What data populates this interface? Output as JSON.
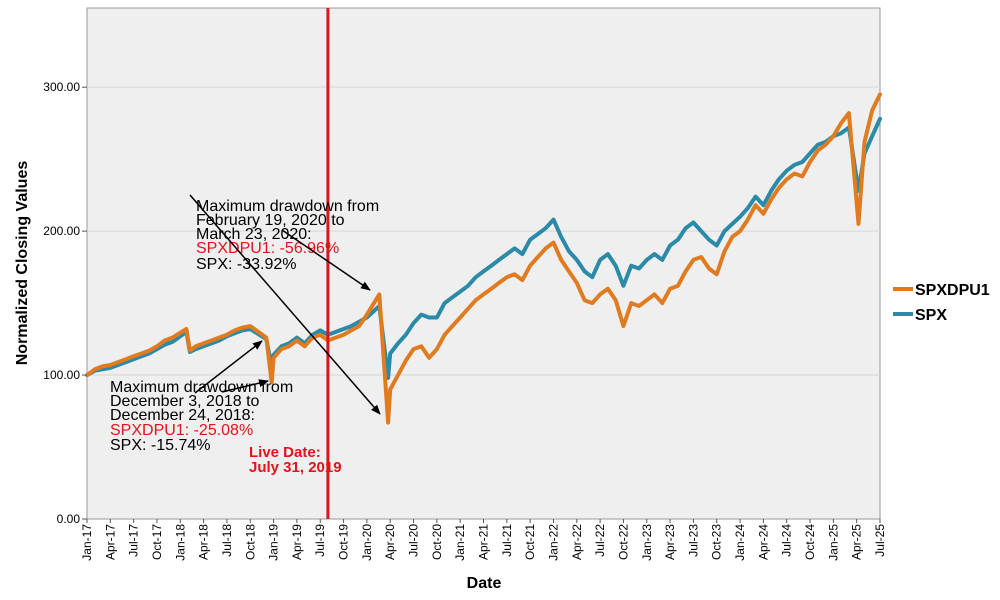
{
  "colors": {
    "spxdpu1": "#e07b20",
    "spx": "#2b8aa8",
    "live_line": "#e0141c",
    "plot_bg": "#efefef",
    "grid": "#d6d6d6"
  },
  "chart_data": {
    "type": "line",
    "title": "",
    "xlabel": "Date",
    "ylabel": "Normalized Closing Values",
    "ylim": [
      0,
      355
    ],
    "y_ticks": [
      "0.00",
      "100.00",
      "200.00",
      "300.00"
    ],
    "x_range": [
      "2017-01",
      "2025-07"
    ],
    "x_ticks": [
      "Jan-17",
      "Apr-17",
      "Jul-17",
      "Oct-17",
      "Jan-18",
      "Apr-18",
      "Jul-18",
      "Oct-18",
      "Jan-19",
      "Apr-19",
      "Jul-19",
      "Oct-19",
      "Jan-20",
      "Apr-20",
      "Jul-20",
      "Oct-20",
      "Jan-21",
      "Apr-21",
      "Jul-21",
      "Oct-21",
      "Jan-22",
      "Apr-22",
      "Jul-22",
      "Oct-22",
      "Jan-23",
      "Apr-23",
      "Jul-23",
      "Oct-23",
      "Jan-24",
      "Apr-24",
      "Jul-24",
      "Oct-24",
      "Jan-25",
      "Apr-25",
      "Jul-25"
    ],
    "grid": true,
    "legend_position": "right",
    "series": [
      {
        "name": "SPXDPU1",
        "x": [
          "2017-01",
          "2017-02",
          "2017-03",
          "2017-04",
          "2017-05",
          "2017-06",
          "2017-07",
          "2017-08",
          "2017-09",
          "2017-10",
          "2017-11",
          "2017-12",
          "2018-01-25",
          "2018-02-08",
          "2018-03",
          "2018-04",
          "2018-05",
          "2018-06",
          "2018-07",
          "2018-08",
          "2018-09",
          "2018-10",
          "2018-12-03",
          "2018-12-24",
          "2019-01",
          "2019-02",
          "2019-03",
          "2019-04",
          "2019-05",
          "2019-06",
          "2019-07",
          "2019-08",
          "2019-09",
          "2019-10",
          "2019-11",
          "2019-12",
          "2020-01",
          "2020-02-19",
          "2020-03-23",
          "2020-04",
          "2020-05",
          "2020-06",
          "2020-07",
          "2020-08",
          "2020-09",
          "2020-10",
          "2020-11",
          "2020-12",
          "2021-01",
          "2021-02",
          "2021-03",
          "2021-04",
          "2021-05",
          "2021-06",
          "2021-07",
          "2021-08",
          "2021-09",
          "2021-10",
          "2021-11",
          "2021-12",
          "2022-01",
          "2022-02",
          "2022-03",
          "2022-04",
          "2022-05",
          "2022-06",
          "2022-07",
          "2022-08",
          "2022-09",
          "2022-10",
          "2022-11",
          "2022-12",
          "2023-01",
          "2023-02",
          "2023-03",
          "2023-04",
          "2023-05",
          "2023-06",
          "2023-07",
          "2023-08",
          "2023-09",
          "2023-10",
          "2023-11",
          "2023-12",
          "2024-01",
          "2024-02",
          "2024-03",
          "2024-04",
          "2024-05",
          "2024-06",
          "2024-07",
          "2024-08",
          "2024-09",
          "2024-10",
          "2024-11",
          "2024-12",
          "2025-01",
          "2025-02",
          "2025-03",
          "2025-04-08",
          "2025-05",
          "2025-06",
          "2025-07"
        ],
        "values": [
          100,
          104,
          106,
          107,
          109,
          111,
          113,
          115,
          117,
          120,
          124,
          126,
          132,
          117,
          120,
          122,
          124,
          126,
          128,
          131,
          133,
          134,
          126,
          95,
          112,
          118,
          120,
          124,
          120,
          126,
          128,
          124,
          126,
          128,
          131,
          134,
          142,
          156,
          67,
          90,
          100,
          110,
          118,
          120,
          112,
          118,
          128,
          134,
          140,
          146,
          152,
          156,
          160,
          164,
          168,
          170,
          166,
          176,
          182,
          188,
          192,
          180,
          172,
          164,
          152,
          150,
          156,
          160,
          152,
          134,
          150,
          148,
          152,
          156,
          150,
          160,
          162,
          172,
          180,
          182,
          174,
          170,
          186,
          196,
          200,
          208,
          218,
          212,
          222,
          230,
          236,
          240,
          238,
          248,
          256,
          260,
          266,
          275,
          282,
          205,
          262,
          284,
          295
        ]
      },
      {
        "name": "SPX",
        "x": [
          "2017-01",
          "2017-02",
          "2017-03",
          "2017-04",
          "2017-05",
          "2017-06",
          "2017-07",
          "2017-08",
          "2017-09",
          "2017-10",
          "2017-11",
          "2017-12",
          "2018-01-25",
          "2018-02-08",
          "2018-03",
          "2018-04",
          "2018-05",
          "2018-06",
          "2018-07",
          "2018-08",
          "2018-09",
          "2018-10",
          "2018-12-03",
          "2018-12-24",
          "2019-01",
          "2019-02",
          "2019-03",
          "2019-04",
          "2019-05",
          "2019-06",
          "2019-07",
          "2019-08",
          "2019-09",
          "2019-10",
          "2019-11",
          "2019-12",
          "2020-01",
          "2020-02-19",
          "2020-03-23",
          "2020-04",
          "2020-05",
          "2020-06",
          "2020-07",
          "2020-08",
          "2020-09",
          "2020-10",
          "2020-11",
          "2020-12",
          "2021-01",
          "2021-02",
          "2021-03",
          "2021-04",
          "2021-05",
          "2021-06",
          "2021-07",
          "2021-08",
          "2021-09",
          "2021-10",
          "2021-11",
          "2021-12",
          "2022-01",
          "2022-02",
          "2022-03",
          "2022-04",
          "2022-05",
          "2022-06",
          "2022-07",
          "2022-08",
          "2022-09",
          "2022-10",
          "2022-11",
          "2022-12",
          "2023-01",
          "2023-02",
          "2023-03",
          "2023-04",
          "2023-05",
          "2023-06",
          "2023-07",
          "2023-08",
          "2023-09",
          "2023-10",
          "2023-11",
          "2023-12",
          "2024-01",
          "2024-02",
          "2024-03",
          "2024-04",
          "2024-05",
          "2024-06",
          "2024-07",
          "2024-08",
          "2024-09",
          "2024-10",
          "2024-11",
          "2024-12",
          "2025-01",
          "2025-02",
          "2025-03",
          "2025-04-08",
          "2025-05",
          "2025-06",
          "2025-07"
        ],
        "values": [
          100,
          103,
          104,
          105,
          107,
          109,
          111,
          113,
          115,
          118,
          121,
          123,
          130,
          116,
          118,
          120,
          122,
          124,
          127,
          129,
          131,
          132,
          125,
          106,
          114,
          120,
          122,
          126,
          122,
          128,
          131,
          128,
          130,
          132,
          134,
          137,
          140,
          148,
          98,
          115,
          122,
          128,
          136,
          142,
          140,
          140,
          150,
          154,
          158,
          162,
          168,
          172,
          176,
          180,
          184,
          188,
          184,
          194,
          198,
          202,
          208,
          196,
          186,
          180,
          172,
          168,
          180,
          184,
          176,
          162,
          176,
          174,
          180,
          184,
          180,
          190,
          194,
          202,
          206,
          200,
          194,
          190,
          200,
          205,
          210,
          216,
          224,
          218,
          228,
          236,
          242,
          246,
          248,
          254,
          260,
          262,
          266,
          268,
          272,
          228,
          254,
          266,
          278
        ]
      }
    ],
    "live_date": "2019-07-31",
    "annotations": [
      {
        "lines": [
          "Maximum drawdown from",
          "February 19, 2020 to",
          "March 23, 2020:"
        ],
        "red_line": "SPXDPU1: -56.96%",
        "last_line": "SPX: -33.92%"
      },
      {
        "lines": [
          "Maximum drawdown from",
          "December 3, 2018 to",
          "December 24, 2018:"
        ],
        "red_line": "SPXDPU1: -25.08%",
        "last_line": "SPX: -15.74%"
      }
    ],
    "live_label": [
      "Live Date:",
      "July 31, 2019"
    ]
  }
}
